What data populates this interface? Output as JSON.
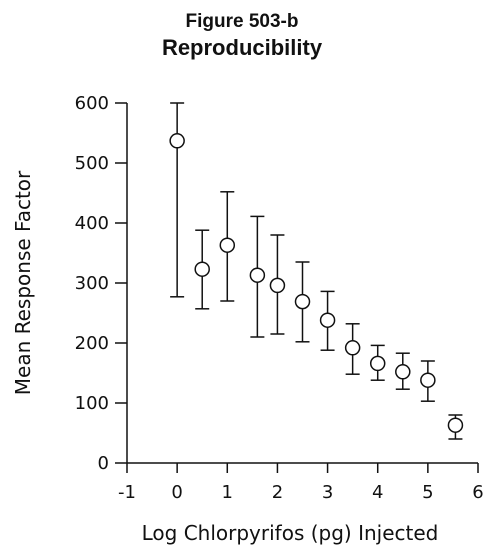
{
  "chart_data": {
    "type": "scatter",
    "title": "Figure 503-b",
    "subtitle": "Reproducibility",
    "xlabel": "Log Chlorpyrifos (pg) Injected",
    "ylabel": "Mean Response Factor",
    "xlim": [
      -1,
      6
    ],
    "ylim": [
      0,
      600
    ],
    "x_ticks": [
      -1,
      0,
      1,
      2,
      3,
      4,
      5,
      6
    ],
    "y_ticks": [
      0,
      100,
      200,
      300,
      400,
      500,
      600
    ],
    "grid": false,
    "legend": "none",
    "marker": "open-circle",
    "series": [
      {
        "x": [
          0,
          0.5,
          1,
          1.6,
          2,
          2.5,
          3,
          3.5,
          4,
          4.5,
          5,
          5.55
        ],
        "y": [
          537,
          323,
          363,
          313,
          296,
          269,
          238,
          192,
          166,
          152,
          138,
          63
        ],
        "y_low": [
          277,
          257,
          270,
          210,
          215,
          202,
          188,
          148,
          138,
          123,
          103,
          40
        ],
        "y_high": [
          600,
          388,
          452,
          411,
          380,
          335,
          286,
          232,
          196,
          183,
          170,
          80
        ]
      }
    ],
    "colors": {
      "line": "#111111",
      "marker_fill": "#ffffff"
    }
  }
}
